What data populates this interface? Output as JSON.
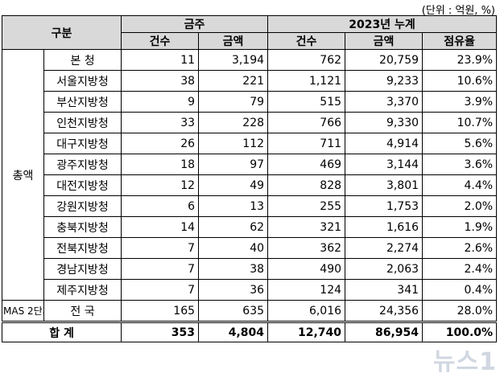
{
  "unit_note": "(단위 : 억원, %)",
  "headers": {
    "category": "구분",
    "weekly": "금주",
    "cumulative": "2023년 누계",
    "count": "건수",
    "amount": "금액",
    "share": "점유율"
  },
  "group_label": "총액",
  "mas_label": "MAS 2단계",
  "rows": [
    {
      "name": "본 청",
      "w_count": "11",
      "w_amount": "3,194",
      "c_count": "762",
      "c_amount": "20,759",
      "share": "23.9%"
    },
    {
      "name": "서울지방청",
      "w_count": "38",
      "w_amount": "221",
      "c_count": "1,121",
      "c_amount": "9,233",
      "share": "10.6%"
    },
    {
      "name": "부산지방청",
      "w_count": "9",
      "w_amount": "79",
      "c_count": "515",
      "c_amount": "3,370",
      "share": "3.9%"
    },
    {
      "name": "인천지방청",
      "w_count": "33",
      "w_amount": "228",
      "c_count": "766",
      "c_amount": "9,330",
      "share": "10.7%"
    },
    {
      "name": "대구지방청",
      "w_count": "26",
      "w_amount": "112",
      "c_count": "711",
      "c_amount": "4,914",
      "share": "5.6%"
    },
    {
      "name": "광주지방청",
      "w_count": "18",
      "w_amount": "97",
      "c_count": "469",
      "c_amount": "3,144",
      "share": "3.6%"
    },
    {
      "name": "대전지방청",
      "w_count": "12",
      "w_amount": "49",
      "c_count": "828",
      "c_amount": "3,801",
      "share": "4.4%"
    },
    {
      "name": "강원지방청",
      "w_count": "6",
      "w_amount": "13",
      "c_count": "255",
      "c_amount": "1,753",
      "share": "2.0%"
    },
    {
      "name": "충북지방청",
      "w_count": "14",
      "w_amount": "62",
      "c_count": "321",
      "c_amount": "1,616",
      "share": "1.9%"
    },
    {
      "name": "전북지방청",
      "w_count": "7",
      "w_amount": "40",
      "c_count": "362",
      "c_amount": "2,274",
      "share": "2.6%"
    },
    {
      "name": "경남지방청",
      "w_count": "7",
      "w_amount": "38",
      "c_count": "490",
      "c_amount": "2,063",
      "share": "2.4%"
    },
    {
      "name": "제주지방청",
      "w_count": "7",
      "w_amount": "36",
      "c_count": "124",
      "c_amount": "341",
      "share": "0.4%"
    }
  ],
  "mas_row": {
    "name": "전 국",
    "w_count": "165",
    "w_amount": "635",
    "c_count": "6,016",
    "c_amount": "24,356",
    "share": "28.0%"
  },
  "total_row": {
    "name": "합 계",
    "w_count": "353",
    "w_amount": "4,804",
    "c_count": "12,740",
    "c_amount": "86,954",
    "share": "100.0%"
  },
  "watermark": "뉴스1"
}
